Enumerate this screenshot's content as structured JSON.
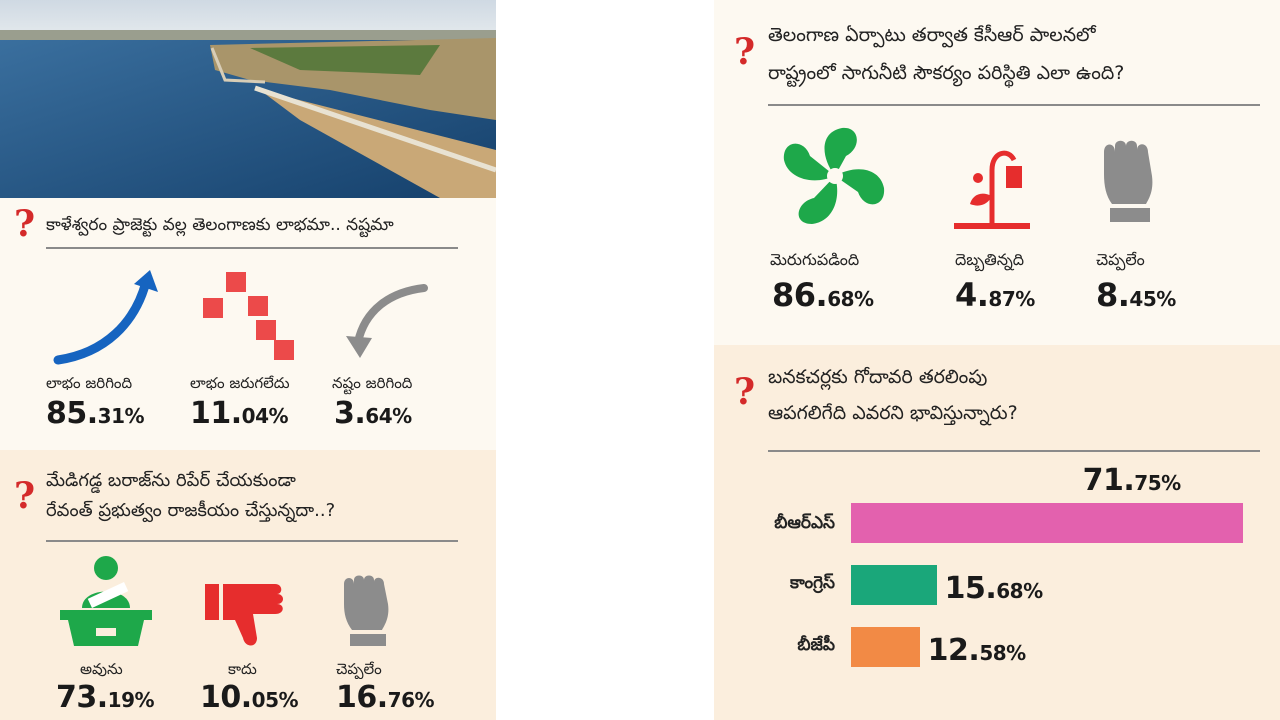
{
  "colors": {
    "question_mark": "#d42a2a",
    "panel_light": "#fdf9f1",
    "panel_dark": "#fbeedd",
    "bar_brs": "#e361ae",
    "bar_congress": "#1aa77a",
    "bar_bjp": "#f28a45",
    "icon_blue": "#1664c0",
    "icon_green": "#1ea84a",
    "icon_red": "#e62d2d",
    "icon_gray": "#8c8c8c"
  },
  "q1": {
    "mark": "?",
    "text": "కాళేశ్వరం ప్రాజెక్టు వల్ల తెలంగాణకు లాభమా.. నష్టమా",
    "items": [
      {
        "icon": "rising-arrow-icon",
        "label": "లాభం జరిగింది",
        "big": "85.",
        "small": "31%"
      },
      {
        "icon": "scattered-blocks-icon",
        "label": "లాభం జరుగలేదు",
        "big": "11.",
        "small": "04%"
      },
      {
        "icon": "falling-arrow-icon",
        "label": "నష్టం జరిగింది",
        "big": "3.",
        "small": "64%"
      }
    ]
  },
  "q2": {
    "mark": "?",
    "line1": "మేడిగడ్డ బరాజ్‌ను రిపేర్ చేయకుండా",
    "line2": "రేవంత్ ప్రభుత్వం రాజకీయం చేస్తున్నదా..?",
    "items": [
      {
        "icon": "voter-ballot-icon",
        "label": "అవును",
        "big": "73.",
        "small": "19%"
      },
      {
        "icon": "thumbs-down-icon",
        "label": "కాదు",
        "big": "10.",
        "small": "05%"
      },
      {
        "icon": "fist-icon",
        "label": "చెప్పలేం",
        "big": "16.",
        "small": "76%"
      }
    ]
  },
  "q3": {
    "mark": "?",
    "line1": "తెలంగాణ ఏర్పాటు తర్వాత కేసీఆర్ పాలనలో",
    "line2": "రాష్ట్రంలో సాగునీటి సౌకర్యం పరిస్థితి ఎలా ఉంది?",
    "items": [
      {
        "icon": "green-flower-icon",
        "label": "మెరుగుపడింది",
        "big": "86.",
        "small": "68%"
      },
      {
        "icon": "wilted-plant-icon",
        "label": "దెబ్బతిన్నది",
        "big": "4.",
        "small": "87%"
      },
      {
        "icon": "fist-icon",
        "label": "చెప్పలేం",
        "big": "8.",
        "small": "45%"
      }
    ]
  },
  "q4": {
    "mark": "?",
    "line1": "బనకచర్లకు గోదావరి తరలింపు",
    "line2": "ఆపగలిగేది ఎవరని భావిస్తున్నారు?"
  },
  "chart_data": {
    "type": "bar",
    "categories": [
      "బీఆర్ఎస్",
      "కాంగ్రెస్",
      "బీజేపీ"
    ],
    "values": [
      71.75,
      15.68,
      12.58
    ],
    "value_labels": [
      {
        "big": "71.",
        "small": "75%"
      },
      {
        "big": "15.",
        "small": "68%"
      },
      {
        "big": "12.",
        "small": "58%"
      }
    ],
    "colors": [
      "#e361ae",
      "#1aa77a",
      "#f28a45"
    ],
    "orientation": "horizontal",
    "xlim": [
      0,
      72
    ]
  }
}
